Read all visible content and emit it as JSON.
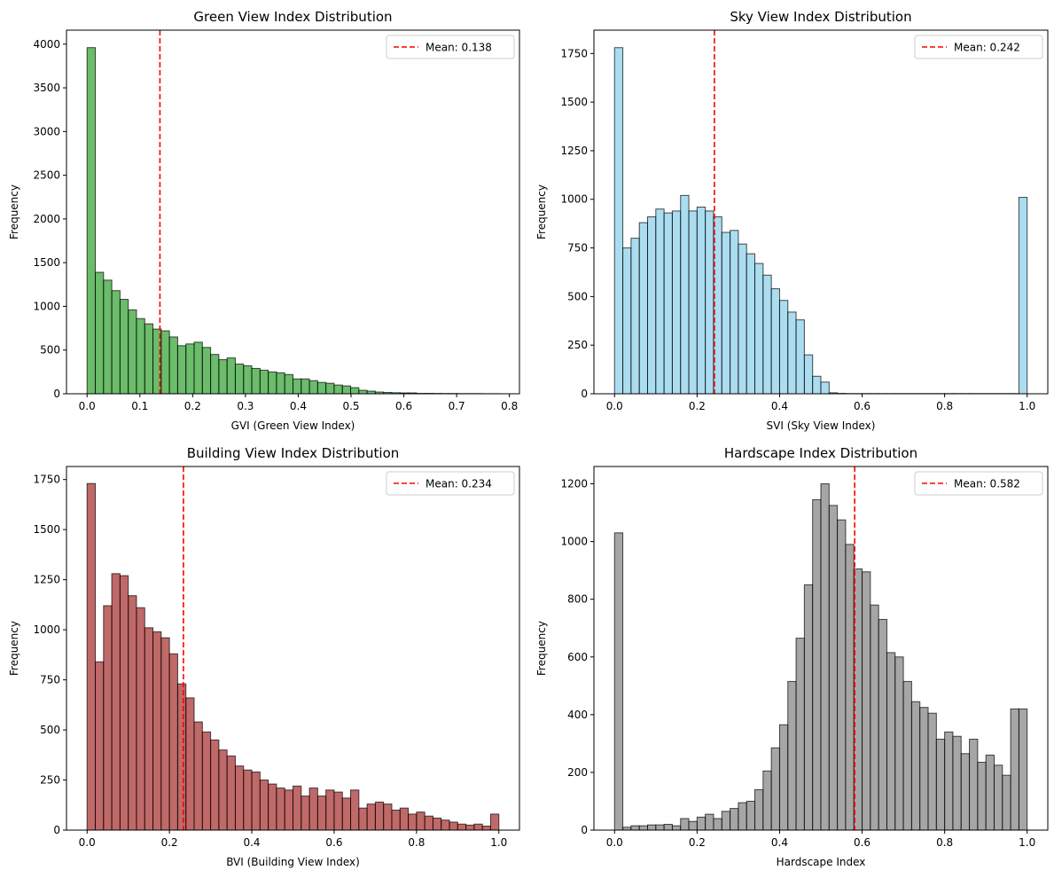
{
  "chart_data": [
    {
      "type": "bar",
      "title": "Green View Index Distribution",
      "xlabel": "GVI (Green View Index)",
      "ylabel": "Frequency",
      "xlim": [
        -0.039,
        0.819
      ],
      "ylim": [
        0,
        4160
      ],
      "xticks": [
        0.0,
        0.1,
        0.2,
        0.3,
        0.4,
        0.5,
        0.6,
        0.7,
        0.8
      ],
      "xtick_labels": [
        "0.0",
        "0.1",
        "0.2",
        "0.3",
        "0.4",
        "0.5",
        "0.6",
        "0.7",
        "0.8"
      ],
      "yticks": [
        0,
        500,
        1000,
        1500,
        2000,
        2500,
        3000,
        3500,
        4000
      ],
      "ytick_labels": [
        "0",
        "500",
        "1000",
        "1500",
        "2000",
        "2500",
        "3000",
        "3500",
        "4000"
      ],
      "bin_start": 0.0,
      "bin_width": 0.0156,
      "counts": [
        3960,
        1390,
        1300,
        1180,
        1080,
        960,
        860,
        800,
        740,
        720,
        650,
        550,
        570,
        590,
        530,
        450,
        390,
        410,
        340,
        320,
        290,
        270,
        250,
        240,
        220,
        170,
        170,
        150,
        130,
        120,
        100,
        90,
        70,
        40,
        30,
        20,
        15,
        12,
        10,
        10,
        5,
        5,
        4,
        3,
        3,
        2,
        2,
        2,
        1,
        1
      ],
      "face_color": "#2ca02c",
      "mean": 0.138,
      "legend": {
        "label": "Mean: 0.138",
        "position": "upper right"
      },
      "mean_color": "#ff0000"
    },
    {
      "type": "bar",
      "title": "Sky View Index Distribution",
      "xlabel": "SVI (Sky View Index)",
      "ylabel": "Frequency",
      "xlim": [
        -0.05,
        1.05
      ],
      "ylim": [
        0,
        1870
      ],
      "xticks": [
        0.0,
        0.2,
        0.4,
        0.6,
        0.8,
        1.0
      ],
      "xtick_labels": [
        "0.0",
        "0.2",
        "0.4",
        "0.6",
        "0.8",
        "1.0"
      ],
      "yticks": [
        0,
        250,
        500,
        750,
        1000,
        1250,
        1500,
        1750
      ],
      "ytick_labels": [
        "0",
        "250",
        "500",
        "750",
        "1000",
        "1250",
        "1500",
        "1750"
      ],
      "bin_start": 0.0,
      "bin_width": 0.02,
      "counts": [
        1780,
        750,
        800,
        880,
        910,
        950,
        930,
        940,
        1020,
        940,
        960,
        940,
        910,
        830,
        840,
        770,
        720,
        670,
        610,
        540,
        480,
        420,
        380,
        200,
        90,
        60,
        5,
        2,
        1,
        1,
        1,
        1,
        1,
        1,
        1,
        1,
        1,
        1,
        1,
        1,
        1,
        1,
        1,
        1,
        1,
        1,
        1,
        1,
        1,
        1010
      ],
      "face_color": "#87ceeb",
      "mean": 0.242,
      "legend": {
        "label": "Mean: 0.242",
        "position": "upper right"
      },
      "mean_color": "#ff0000"
    },
    {
      "type": "bar",
      "title": "Building View Index Distribution",
      "xlabel": "BVI (Building View Index)",
      "ylabel": "Frequency",
      "xlim": [
        -0.05,
        1.05
      ],
      "ylim": [
        0,
        1815
      ],
      "xticks": [
        0.0,
        0.2,
        0.4,
        0.6,
        0.8,
        1.0
      ],
      "xtick_labels": [
        "0.0",
        "0.2",
        "0.4",
        "0.6",
        "0.8",
        "1.0"
      ],
      "yticks": [
        0,
        250,
        500,
        750,
        1000,
        1250,
        1500,
        1750
      ],
      "ytick_labels": [
        "0",
        "250",
        "500",
        "750",
        "1000",
        "1250",
        "1500",
        "1750"
      ],
      "bin_start": 0.0,
      "bin_width": 0.02,
      "counts": [
        1730,
        840,
        1120,
        1280,
        1270,
        1170,
        1110,
        1010,
        990,
        960,
        880,
        730,
        660,
        540,
        490,
        450,
        400,
        370,
        320,
        300,
        290,
        250,
        230,
        210,
        200,
        220,
        170,
        210,
        170,
        200,
        190,
        160,
        200,
        110,
        130,
        140,
        130,
        100,
        110,
        80,
        90,
        70,
        60,
        50,
        40,
        30,
        25,
        30,
        20,
        80
      ],
      "face_color": "#a52a2a",
      "mean": 0.234,
      "legend": {
        "label": "Mean: 0.234",
        "position": "upper right"
      },
      "mean_color": "#ff0000"
    },
    {
      "type": "bar",
      "title": "Hardscape Index Distribution",
      "xlabel": "Hardscape Index",
      "ylabel": "Frequency",
      "xlim": [
        -0.05,
        1.05
      ],
      "ylim": [
        0,
        1260
      ],
      "xticks": [
        0.0,
        0.2,
        0.4,
        0.6,
        0.8,
        1.0
      ],
      "xtick_labels": [
        "0.0",
        "0.2",
        "0.4",
        "0.6",
        "0.8",
        "1.0"
      ],
      "yticks": [
        0,
        200,
        400,
        600,
        800,
        1000,
        1200
      ],
      "ytick_labels": [
        "0",
        "200",
        "400",
        "600",
        "800",
        "1000",
        "1200"
      ],
      "bin_start": 0.0,
      "bin_width": 0.02,
      "counts": [
        1030,
        10,
        15,
        15,
        18,
        18,
        20,
        15,
        40,
        30,
        45,
        55,
        40,
        65,
        75,
        95,
        100,
        140,
        205,
        285,
        365,
        515,
        665,
        850,
        1145,
        1200,
        1125,
        1075,
        990,
        905,
        895,
        780,
        730,
        615,
        600,
        515,
        445,
        425,
        405,
        315,
        340,
        325,
        265,
        315,
        235,
        260,
        225,
        190,
        420,
        420
      ],
      "face_color": "#808080",
      "mean": 0.582,
      "legend": {
        "label": "Mean: 0.582",
        "position": "upper right"
      },
      "mean_color": "#ff0000"
    }
  ]
}
